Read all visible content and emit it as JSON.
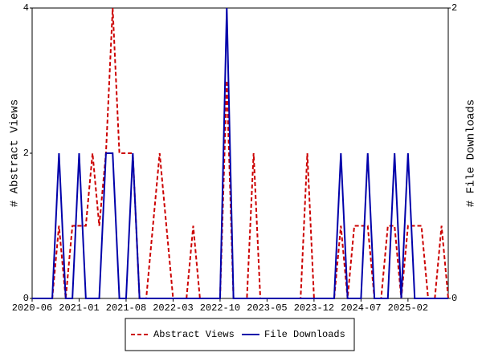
{
  "chart_data": {
    "type": "line",
    "categories": [
      "2020-06",
      null,
      null,
      null,
      null,
      null,
      null,
      "2021-01",
      null,
      null,
      null,
      null,
      null,
      null,
      "2021-08",
      null,
      null,
      null,
      null,
      null,
      null,
      "2022-03",
      null,
      null,
      null,
      null,
      null,
      null,
      "2022-10",
      null,
      null,
      null,
      null,
      null,
      null,
      "2023-05",
      null,
      null,
      null,
      null,
      null,
      null,
      "2023-12",
      null,
      null,
      null,
      null,
      null,
      null,
      "2024-07",
      null,
      null,
      null,
      null,
      null,
      null,
      "2025-02",
      null,
      null,
      null,
      null,
      null,
      null
    ],
    "series": [
      {
        "name": "Abstract Views",
        "color": "#cc0000",
        "axis": "y",
        "values": [
          0,
          0,
          0,
          0,
          1,
          0,
          1,
          1,
          1,
          2,
          1,
          2,
          4,
          2,
          2,
          2,
          0,
          0,
          1,
          2,
          1,
          0,
          0,
          0,
          1,
          0,
          0,
          0,
          0,
          3,
          0,
          0,
          0,
          2,
          0,
          0,
          0,
          0,
          0,
          0,
          0,
          2,
          0,
          0,
          0,
          0,
          1,
          0,
          1,
          1,
          1,
          0,
          0,
          1,
          1,
          0,
          1,
          1,
          1,
          0,
          0,
          1,
          0
        ]
      },
      {
        "name": "File Downloads",
        "color": "#0000aa",
        "axis": "y2",
        "values": [
          0,
          0,
          0,
          0,
          1,
          0,
          0,
          1,
          0,
          0,
          0,
          1,
          1,
          0,
          0,
          1,
          0,
          0,
          0,
          0,
          0,
          0,
          0,
          0,
          0,
          0,
          0,
          0,
          0,
          2,
          0,
          0,
          0,
          0,
          0,
          0,
          0,
          0,
          0,
          0,
          0,
          0,
          0,
          0,
          0,
          0,
          1,
          0,
          0,
          0,
          1,
          0,
          0,
          0,
          1,
          0,
          1,
          0,
          0,
          0,
          0,
          0,
          0
        ]
      }
    ],
    "ylabel": "# Abstract Views",
    "y2label": "# File Downloads",
    "ylim": [
      0,
      4
    ],
    "yticks": [
      0,
      2,
      4
    ],
    "y2lim": [
      0,
      2
    ],
    "y2ticks": [
      0,
      2
    ]
  }
}
